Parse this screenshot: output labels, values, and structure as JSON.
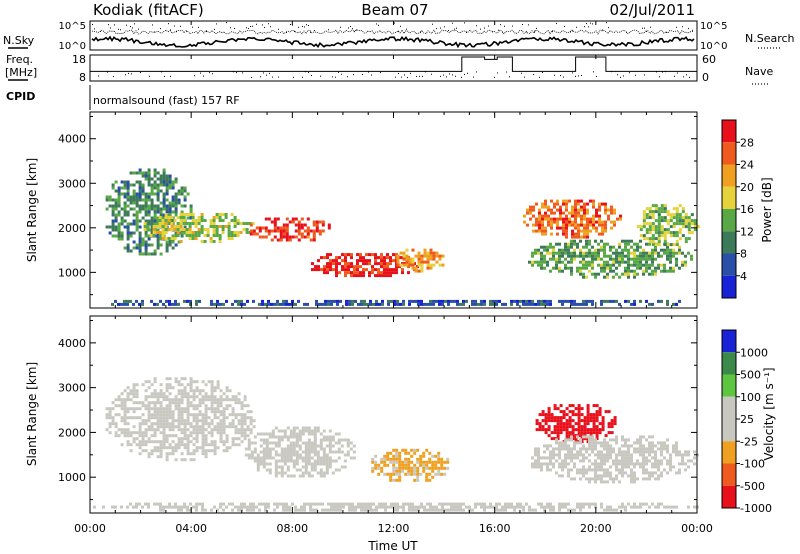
{
  "header": {
    "station": "Kodiak (fitACF)",
    "beam": "Beam 07",
    "date": "02/Jul/2011"
  },
  "nsky_panel": {
    "left_label": "N.Sky",
    "right_label": "N.Search",
    "left_ticks": [
      "10^5",
      "10^0"
    ],
    "right_ticks": [
      "10^5",
      "10^0"
    ]
  },
  "freq_panel": {
    "left_label_1": "Freq.",
    "left_label_2": "[MHz]",
    "right_label": "Nave",
    "left_ticks": [
      "18",
      "8"
    ],
    "right_ticks": [
      "60",
      "0"
    ]
  },
  "cpid": {
    "label": "CPID",
    "text": "normalsound (fast) 157 RF"
  },
  "x_axis": {
    "ticks": [
      "00:00",
      "04:00",
      "08:00",
      "12:00",
      "16:00",
      "20:00",
      "00:00"
    ],
    "label": "Time UT"
  },
  "power_panel": {
    "ylabel": "Slant Range [km]",
    "yticks": [
      "4000",
      "3000",
      "2000",
      "1000"
    ],
    "colorbar_label": "Power [dB]",
    "colorbar_ticks": [
      "28",
      "24",
      "20",
      "16",
      "12",
      "8",
      "4"
    ]
  },
  "velocity_panel": {
    "ylabel": "Slant Range [km]",
    "yticks": [
      "4000",
      "3000",
      "2000",
      "1000"
    ],
    "colorbar_label": "Velocity [m s⁻¹]",
    "colorbar_ticks": [
      "1000",
      "500",
      "100",
      "25",
      "-25",
      "-100",
      "-500",
      "-1000"
    ]
  },
  "chart_data": [
    {
      "type": "line",
      "series": [],
      "x_range": [
        0,
        24
      ],
      "y_ticks_left": [
        "10^5",
        "10^0"
      ],
      "y_ticks_right": [
        "10^5",
        "10^0"
      ]
    },
    {
      "type": "line",
      "series": [
        {
          "values_x": [
            0,
            14.7,
            14.7,
            15.6,
            15.6,
            16.1,
            16.1,
            16.7,
            16.7,
            19.2,
            19.2,
            20.4,
            20.4,
            24
          ],
          "values_y": [
            12,
            12,
            18,
            18,
            17,
            17,
            18,
            18,
            12,
            12,
            18,
            18,
            12,
            12
          ]
        }
      ],
      "xlim": [
        0,
        24
      ],
      "ylim_left": [
        8,
        18
      ],
      "ylim_right": [
        0,
        60
      ]
    },
    {
      "type": "heatmap",
      "xlim": [
        0,
        24
      ],
      "ylim": [
        200,
        4600
      ],
      "value_range": [
        0,
        30
      ],
      "colors": [
        "#1a22d6",
        "#2a4fa8",
        "#3c7a5a",
        "#58a845",
        "#e6d23a",
        "#f0a020",
        "#ef5a1e",
        "#e8101a"
      ],
      "echo_regions": [
        {
          "t": [
            0.5,
            4.0
          ],
          "r": [
            1400,
            3400
          ],
          "power": 10
        },
        {
          "t": [
            2.0,
            6.5
          ],
          "r": [
            1700,
            2400
          ],
          "power": 16
        },
        {
          "t": [
            6.2,
            9.5
          ],
          "r": [
            1700,
            2300
          ],
          "power": 26
        },
        {
          "t": [
            8.5,
            13.0
          ],
          "r": [
            900,
            1500
          ],
          "power": 28
        },
        {
          "t": [
            12.0,
            14.0
          ],
          "r": [
            1000,
            1600
          ],
          "power": 20
        },
        {
          "t": [
            17.0,
            21.0
          ],
          "r": [
            1800,
            2700
          ],
          "power": 24
        },
        {
          "t": [
            17.2,
            23.8
          ],
          "r": [
            900,
            1800
          ],
          "power": 12
        },
        {
          "t": [
            21.5,
            24.0
          ],
          "r": [
            1600,
            2600
          ],
          "power": 14
        },
        {
          "t": [
            0.0,
            24.0
          ],
          "r": [
            250,
            450
          ],
          "power": 6
        }
      ]
    },
    {
      "type": "heatmap",
      "xlim": [
        0,
        24
      ],
      "ylim": [
        200,
        4600
      ],
      "value_range": [
        -1000,
        1000
      ],
      "colors": [
        "#e8101a",
        "#ef5a1e",
        "#f0a020",
        "#c8c8c0",
        "#c8c8c0",
        "#5ec540",
        "#3c8a4a",
        "#1a22d6"
      ],
      "echo_regions": [
        {
          "t": [
            0.5,
            6.5
          ],
          "r": [
            1400,
            3300
          ],
          "velocity": 0
        },
        {
          "t": [
            6.0,
            10.5
          ],
          "r": [
            1000,
            2200
          ],
          "velocity": 150
        },
        {
          "t": [
            11.0,
            14.2
          ],
          "r": [
            900,
            1700
          ],
          "velocity": -300
        },
        {
          "t": [
            17.5,
            20.8
          ],
          "r": [
            1800,
            2700
          ],
          "velocity": -900
        },
        {
          "t": [
            17.2,
            24.0
          ],
          "r": [
            900,
            2000
          ],
          "velocity": 0
        },
        {
          "t": [
            0.0,
            24.0
          ],
          "r": [
            250,
            500
          ],
          "velocity": 100
        }
      ]
    }
  ]
}
